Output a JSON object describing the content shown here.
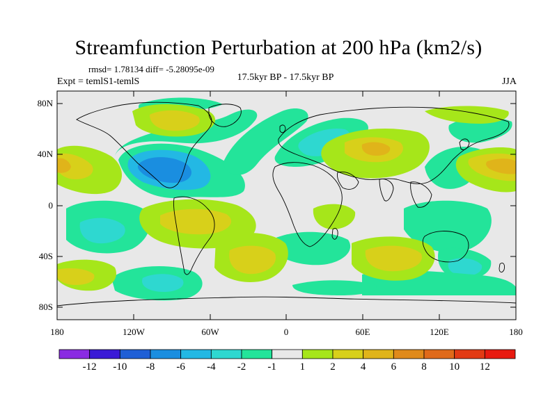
{
  "title": "Streamfunction Perturbation at 200 hPa (km2/s)",
  "stats": "rmsd= 1.78134 diff= -5.28095e-09",
  "experiment": "Expt = temlS1-temlS",
  "period": "17.5kyr BP - 17.5kyr BP",
  "season": "JJA",
  "lat_labels": [
    "80N",
    "40N",
    "0",
    "40S",
    "80S"
  ],
  "lon_labels": [
    "180",
    "120W",
    "60W",
    "0",
    "60E",
    "120E",
    "180"
  ],
  "colorbar": {
    "labels": [
      "-12",
      "-10",
      "-8",
      "-6",
      "-4",
      "-2",
      "-1",
      "1",
      "2",
      "4",
      "6",
      "8",
      "10",
      "12"
    ],
    "colors": [
      "#8a2be2",
      "#3a1ad6",
      "#1f5fd6",
      "#1a8ee0",
      "#23b8e4",
      "#2ed8d0",
      "#23e49a",
      "#e8e8e8",
      "#a6e61a",
      "#d8d01a",
      "#e0b41a",
      "#e08a1a",
      "#e06a1a",
      "#e23a14",
      "#e81a10"
    ]
  },
  "palette": {
    "neutral": "#e8e8e8",
    "neg1": "#23e49a",
    "neg2": "#2ed8d0",
    "neg4": "#23b8e4",
    "neg6": "#1a8ee0",
    "pos1": "#a6e61a",
    "pos2": "#d8d01a",
    "pos4": "#e0b41a",
    "pos6": "#e08a1a"
  }
}
